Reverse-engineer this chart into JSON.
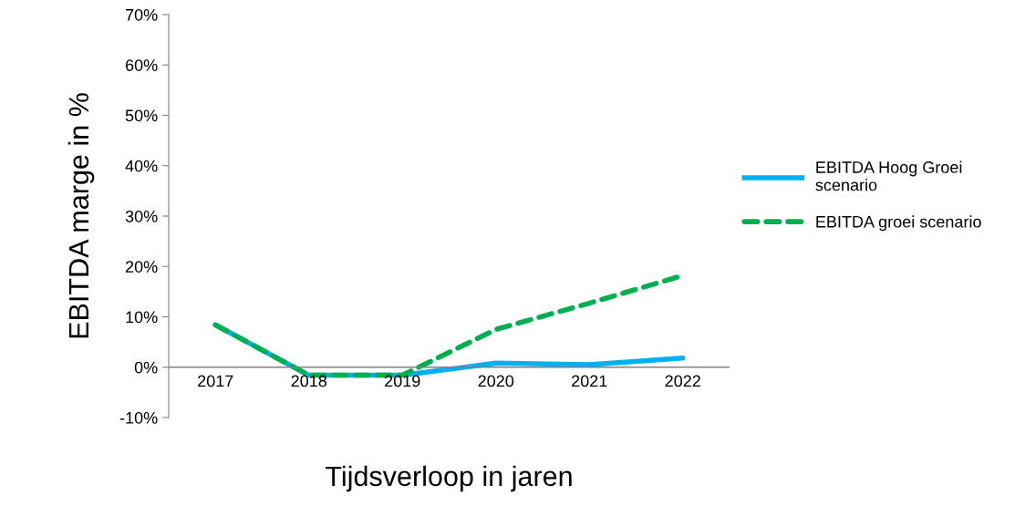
{
  "chart_data": {
    "type": "line",
    "xlabel": "Tijdsverloop in jaren",
    "ylabel": "EBITDA marge in %",
    "categories": [
      "2017",
      "2018",
      "2019",
      "2020",
      "2021",
      "2022"
    ],
    "series": [
      {
        "name": "EBITDA Hoog Groei scenario",
        "color": "#00b0f0",
        "line_style": "solid",
        "values": [
          8.4,
          -1.6,
          -1.6,
          0.8,
          0.5,
          1.8
        ]
      },
      {
        "name": "EBITDA groei scenario",
        "color": "#00b050",
        "line_style": "dashed",
        "values": [
          8.4,
          -1.6,
          -1.6,
          7.5,
          12.7,
          18.2
        ]
      }
    ],
    "ylim": [
      -10,
      70
    ],
    "yticks": [
      {
        "value": -10,
        "label": "-10%"
      },
      {
        "value": 0,
        "label": "0%"
      },
      {
        "value": 10,
        "label": "10%"
      },
      {
        "value": 20,
        "label": "20%"
      },
      {
        "value": 30,
        "label": "30%"
      },
      {
        "value": 40,
        "label": "40%"
      },
      {
        "value": 50,
        "label": "50%"
      },
      {
        "value": 60,
        "label": "60%"
      },
      {
        "value": 70,
        "label": "70%"
      }
    ],
    "grid": false,
    "legend": "right",
    "marker": "none"
  }
}
